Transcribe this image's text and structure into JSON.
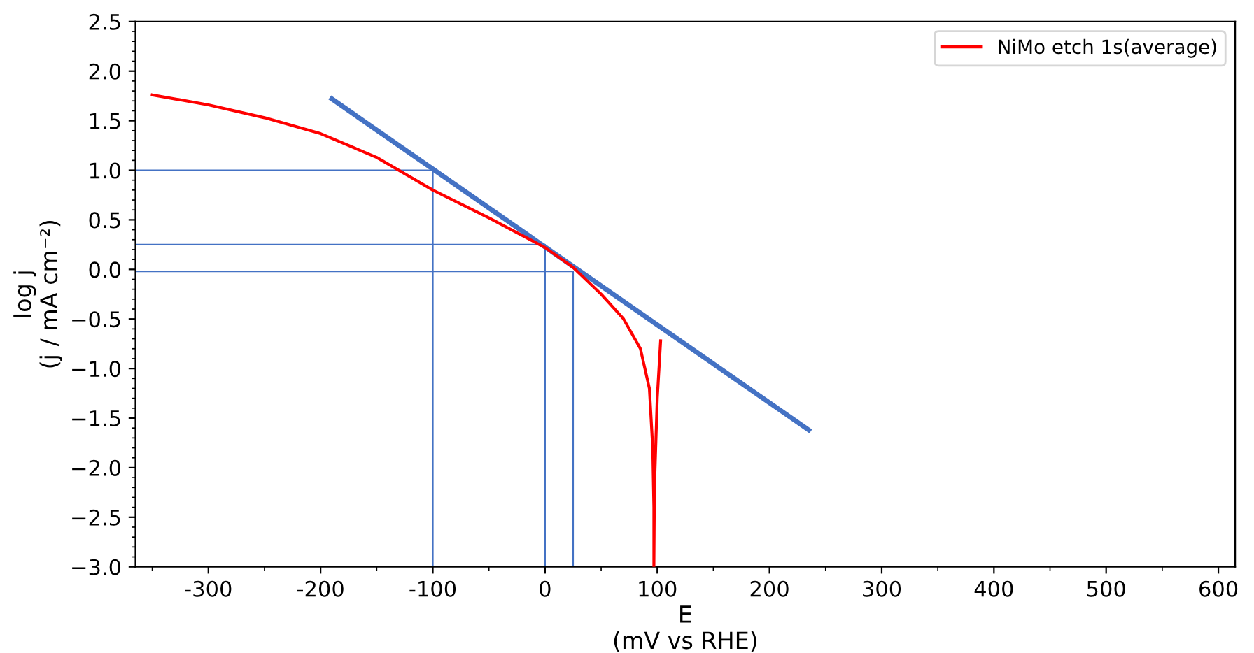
{
  "chart_data": {
    "type": "line",
    "xlabel": "E\n(mV vs RHE)",
    "ylabel": "log j\n(j / mA cm⁻²)",
    "xlim": [
      -365,
      615
    ],
    "ylim": [
      -3.0,
      2.5
    ],
    "xticks": [
      -300,
      -200,
      -100,
      0,
      100,
      200,
      300,
      400,
      500,
      600
    ],
    "yticks": [
      {
        "value": -3.0,
        "label": "−3.0"
      },
      {
        "value": -2.5,
        "label": "−2.5"
      },
      {
        "value": -2.0,
        "label": "−2.0"
      },
      {
        "value": -1.5,
        "label": "−1.5"
      },
      {
        "value": -1.0,
        "label": "−1.0"
      },
      {
        "value": -0.5,
        "label": "−0.5"
      },
      {
        "value": 0.0,
        "label": "0.0"
      },
      {
        "value": 0.5,
        "label": "0.5"
      },
      {
        "value": 1.0,
        "label": "1.0"
      },
      {
        "value": 1.5,
        "label": "1.5"
      },
      {
        "value": 2.0,
        "label": "2.0"
      },
      {
        "value": 2.5,
        "label": "2.5"
      }
    ],
    "grid": false,
    "legend": "top right",
    "marker": "none",
    "line_style": "solid",
    "series": [
      {
        "name": "NiMo etch 1s(average)",
        "color": "#ff0000",
        "x": [
          -350,
          -300,
          -250,
          -200,
          -150,
          -100,
          -50,
          0,
          25,
          50,
          70,
          85,
          93,
          96,
          97,
          97,
          97.5,
          100,
          103
        ],
        "values": [
          1.76,
          1.66,
          1.53,
          1.37,
          1.13,
          0.8,
          0.52,
          0.22,
          0.02,
          -0.25,
          -0.5,
          -0.8,
          -1.2,
          -1.8,
          -2.4,
          -3.0,
          -2.2,
          -1.3,
          -0.72
        ]
      },
      {
        "color": "#4472c4",
        "x": [
          -190,
          235
        ],
        "values": [
          1.72,
          -1.62
        ]
      },
      {
        "color": "#4472c4",
        "x": [
          -365,
          -100,
          -100
        ],
        "values": [
          1.0,
          1.0,
          -3.0
        ]
      },
      {
        "color": "#4472c4",
        "x": [
          -365,
          0,
          0
        ],
        "values": [
          0.25,
          0.25,
          -3.0
        ]
      },
      {
        "color": "#4472c4",
        "x": [
          -365,
          25,
          25
        ],
        "values": [
          -0.02,
          -0.02,
          -3.0
        ]
      }
    ]
  }
}
